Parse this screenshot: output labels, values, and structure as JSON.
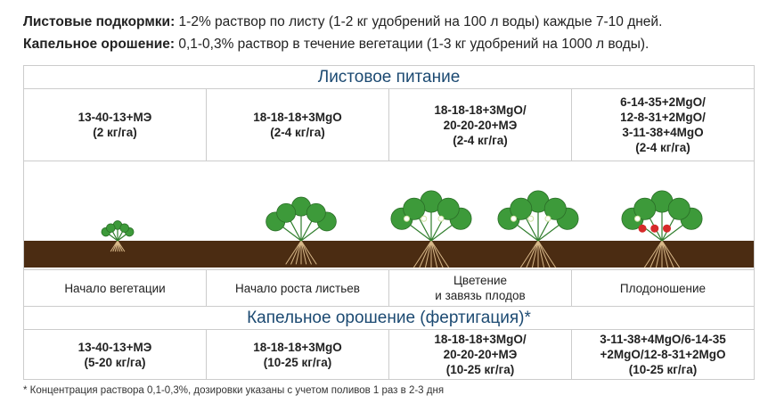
{
  "intro": {
    "foliar_label": "Листовые подкормки:",
    "foliar_text": " 1-2% раствор по листу (1-2 кг удобрений на 100 л воды) каждые 7-10 дней.",
    "drip_label": "Капельное орошение:",
    "drip_text": " 0,1-0,3% раствор в течение вегетации (1-3 кг удобрений на 1000 л воды)."
  },
  "foliar": {
    "title": "Листовое питание",
    "cells": [
      "13-40-13+МЭ\n(2 кг/га)",
      "18-18-18+3MgO\n(2-4 кг/га)",
      "18-18-18+3MgO/\n20-20-20+МЭ\n(2-4 кг/га)",
      "6-14-35+2MgO/\n12-8-31+2MgO/\n3-11-38+4MgO\n(2-4 кг/га)"
    ]
  },
  "stages": [
    "Начало вегетации",
    "Начало роста листьев",
    "Цветение\nи завязь плодов",
    "Плодоношение"
  ],
  "drip": {
    "title": "Капельное орошение (фертигация)*",
    "cells": [
      "13-40-13+МЭ\n(5-20 кг/га)",
      "18-18-18+3MgO\n(10-25 кг/га)",
      "18-18-18+3MgO/\n20-20-20+МЭ\n(10-25 кг/га)",
      "3-11-38+4MgO/6-14-35\n+2MgO/12-8-31+2MgO\n(10-25 кг/га)"
    ]
  },
  "footnote": "* Концентрация раствора 0,1-0,3%, дозировки указаны с учетом поливов 1 раз в 2-3 дня",
  "colors": {
    "heading": "#1c4a72",
    "soil": "#4b2c12",
    "leaf": "#3d9a3a"
  }
}
